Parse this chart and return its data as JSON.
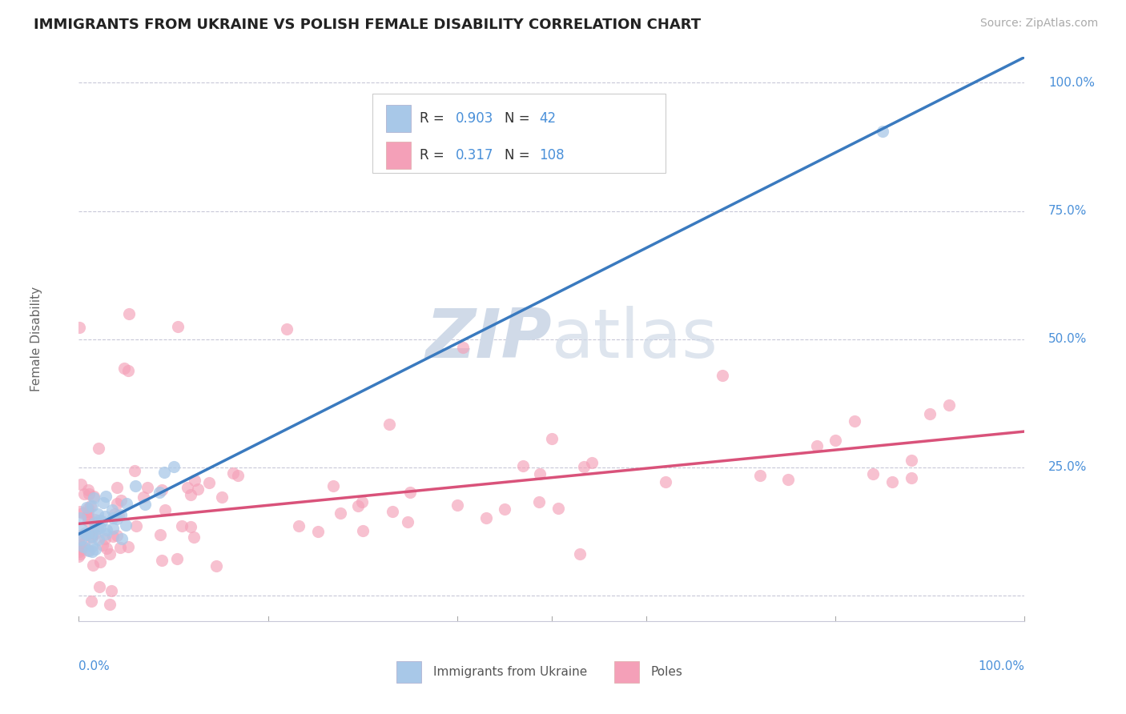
{
  "title": "IMMIGRANTS FROM UKRAINE VS POLISH FEMALE DISABILITY CORRELATION CHART",
  "source": "Source: ZipAtlas.com",
  "ylabel": "Female Disability",
  "legend_label1": "Immigrants from Ukraine",
  "legend_label2": "Poles",
  "R1": 0.903,
  "N1": 42,
  "R2": 0.317,
  "N2": 108,
  "blue_scatter_color": "#a8c8e8",
  "pink_scatter_color": "#f4a0b8",
  "blue_line_color": "#3a7abf",
  "pink_line_color": "#d9527a",
  "title_color": "#222222",
  "label_color": "#4a90d9",
  "grid_color": "#c8c8d8",
  "background_color": "#ffffff",
  "watermark_color": "#d0dae8",
  "annotation_color": "#4a90d9"
}
